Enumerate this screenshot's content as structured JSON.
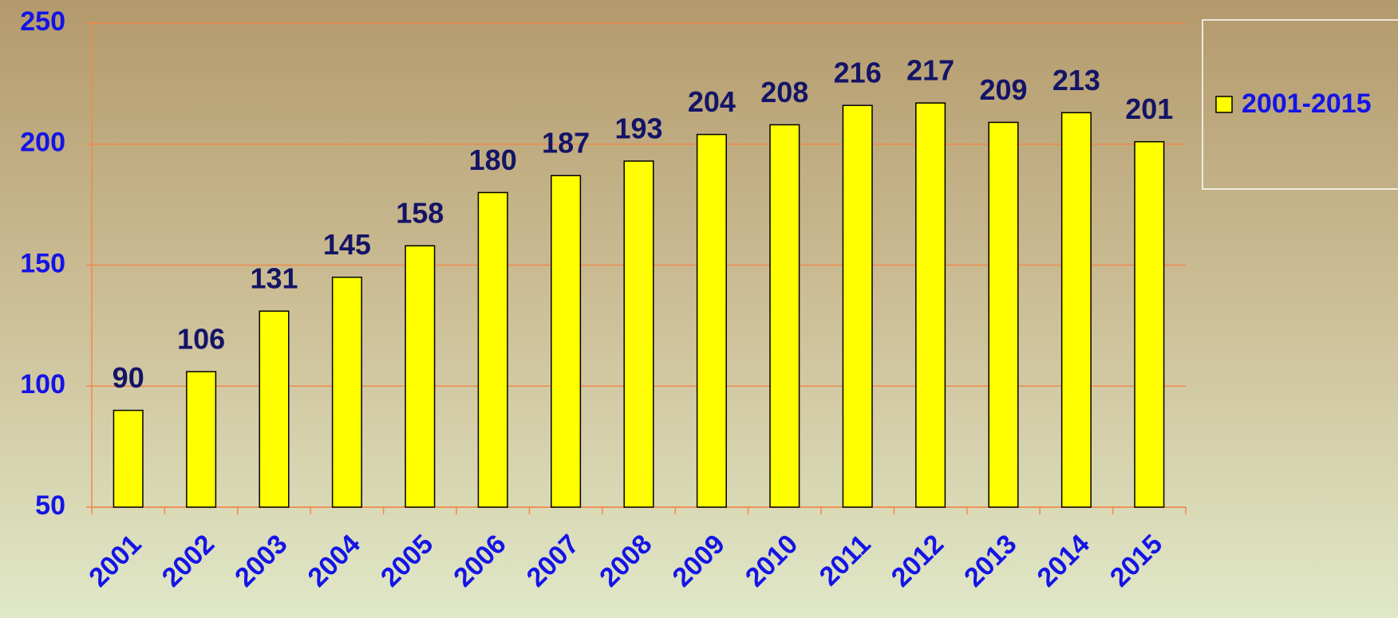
{
  "chart_data": {
    "type": "bar",
    "categories": [
      "2001",
      "2002",
      "2003",
      "2004",
      "2005",
      "2006",
      "2007",
      "2008",
      "2009",
      "2010",
      "2011",
      "2012",
      "2013",
      "2014",
      "2015"
    ],
    "series": [
      {
        "name": "2001-2015",
        "color": "#ffff00",
        "values": [
          90,
          106,
          131,
          145,
          158,
          180,
          187,
          193,
          204,
          208,
          216,
          217,
          209,
          213,
          201
        ]
      }
    ],
    "ylim": [
      50,
      250
    ],
    "yticks": [
      50,
      100,
      150,
      200,
      250
    ],
    "grid": true,
    "legend": "right"
  }
}
